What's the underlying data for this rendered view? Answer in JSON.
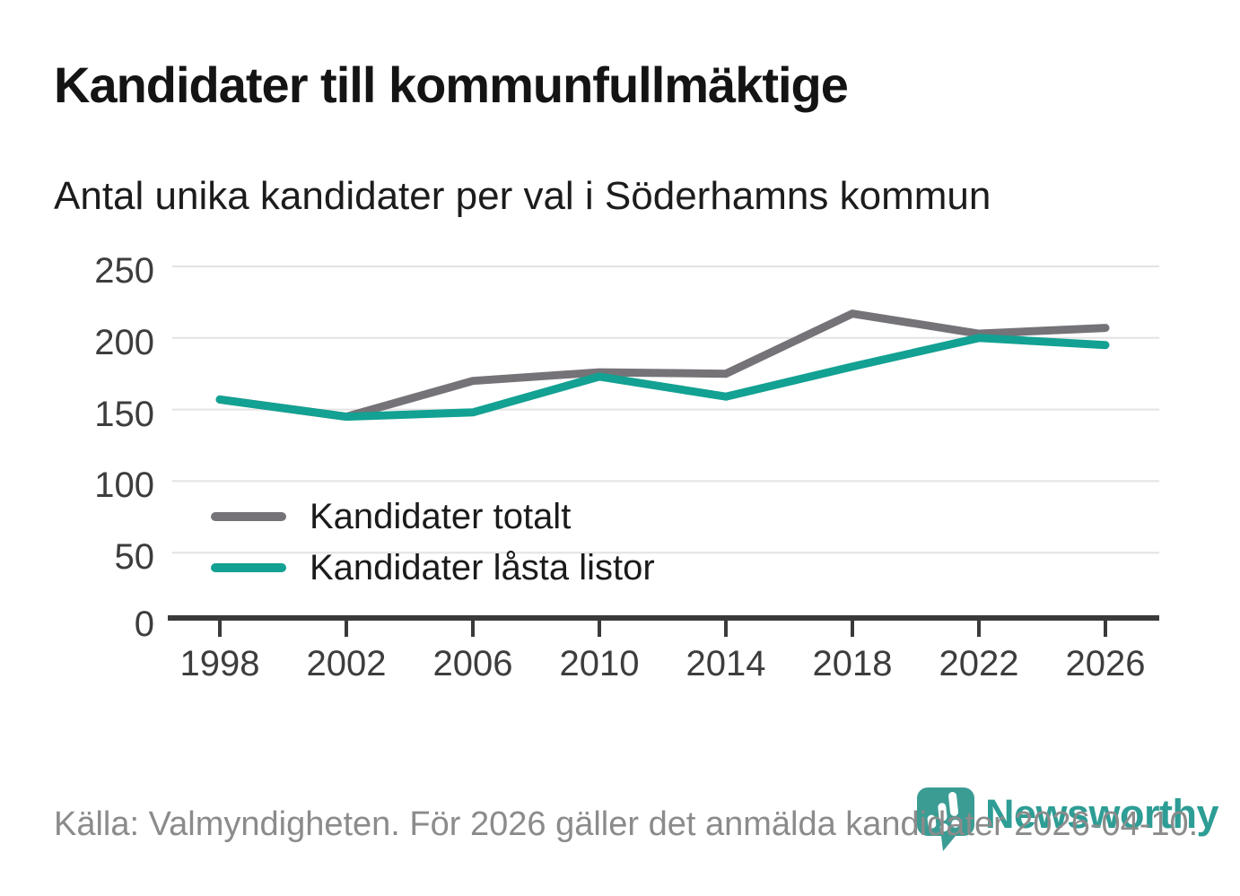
{
  "header": {
    "title": "Kandidater till kommunfullmäktige",
    "subtitle": "Antal unika kandidater per val i Söderhamns kommun"
  },
  "chart_data": {
    "type": "line",
    "categories": [
      "1998",
      "2002",
      "2006",
      "2010",
      "2014",
      "2018",
      "2022",
      "2026"
    ],
    "series": [
      {
        "name": "Kandidater totalt",
        "color": "#757378",
        "values": [
          157,
          145,
          170,
          176,
          175,
          217,
          203,
          207
        ]
      },
      {
        "name": "Kandidater låsta listor",
        "color": "#12a192",
        "values": [
          157,
          145,
          148,
          173,
          159,
          180,
          200,
          195
        ]
      }
    ],
    "title": "Kandidater till kommunfullmäktige",
    "subtitle": "Antal unika kandidater per val i Söderhamns kommun",
    "xlabel": "",
    "ylabel": "",
    "yticks": [
      0,
      50,
      100,
      150,
      200,
      250
    ],
    "ylim": [
      0,
      250
    ],
    "grid": true,
    "legend_position": "inside-left-bottom",
    "colors": {
      "grid_line": "#e3e3e3",
      "axis_line": "#3a3a3a",
      "tick_label": "#3d3d3d"
    }
  },
  "footer": {
    "source_note": "Källa: Valmyndigheten. För 2026 gäller det anmälda kandidater 2026-04-10."
  },
  "branding": {
    "name": "Newsworthy",
    "accent_color": "#2d9d95",
    "icon_color": "#3b9c94"
  }
}
